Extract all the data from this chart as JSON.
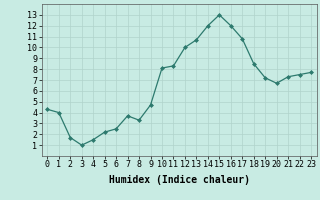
{
  "x": [
    0,
    1,
    2,
    3,
    4,
    5,
    6,
    7,
    8,
    9,
    10,
    11,
    12,
    13,
    14,
    15,
    16,
    17,
    18,
    19,
    20,
    21,
    22,
    23
  ],
  "y": [
    4.3,
    4.0,
    1.7,
    1.0,
    1.5,
    2.2,
    2.5,
    3.7,
    3.3,
    4.7,
    8.1,
    8.3,
    10.0,
    10.7,
    12.0,
    13.0,
    12.0,
    10.8,
    8.5,
    7.2,
    6.7,
    7.3,
    7.5,
    7.7
  ],
  "line_color": "#2d7a6e",
  "marker": "D",
  "marker_size": 2.0,
  "background_color": "#c8ebe3",
  "grid_color": "#b0d4cc",
  "xlabel": "Humidex (Indice chaleur)",
  "xlabel_fontsize": 7,
  "tick_fontsize": 6,
  "ylim": [
    0,
    14
  ],
  "xlim": [
    -0.5,
    23.5
  ],
  "yticks": [
    1,
    2,
    3,
    4,
    5,
    6,
    7,
    8,
    9,
    10,
    11,
    12,
    13
  ],
  "xticks": [
    0,
    1,
    2,
    3,
    4,
    5,
    6,
    7,
    8,
    9,
    10,
    11,
    12,
    13,
    14,
    15,
    16,
    17,
    18,
    19,
    20,
    21,
    22,
    23
  ],
  "xtick_labels": [
    "0",
    "1",
    "2",
    "3",
    "4",
    "5",
    "6",
    "7",
    "8",
    "9",
    "10",
    "11",
    "12",
    "13",
    "14",
    "15",
    "16",
    "17",
    "18",
    "19",
    "20",
    "21",
    "22",
    "23"
  ]
}
